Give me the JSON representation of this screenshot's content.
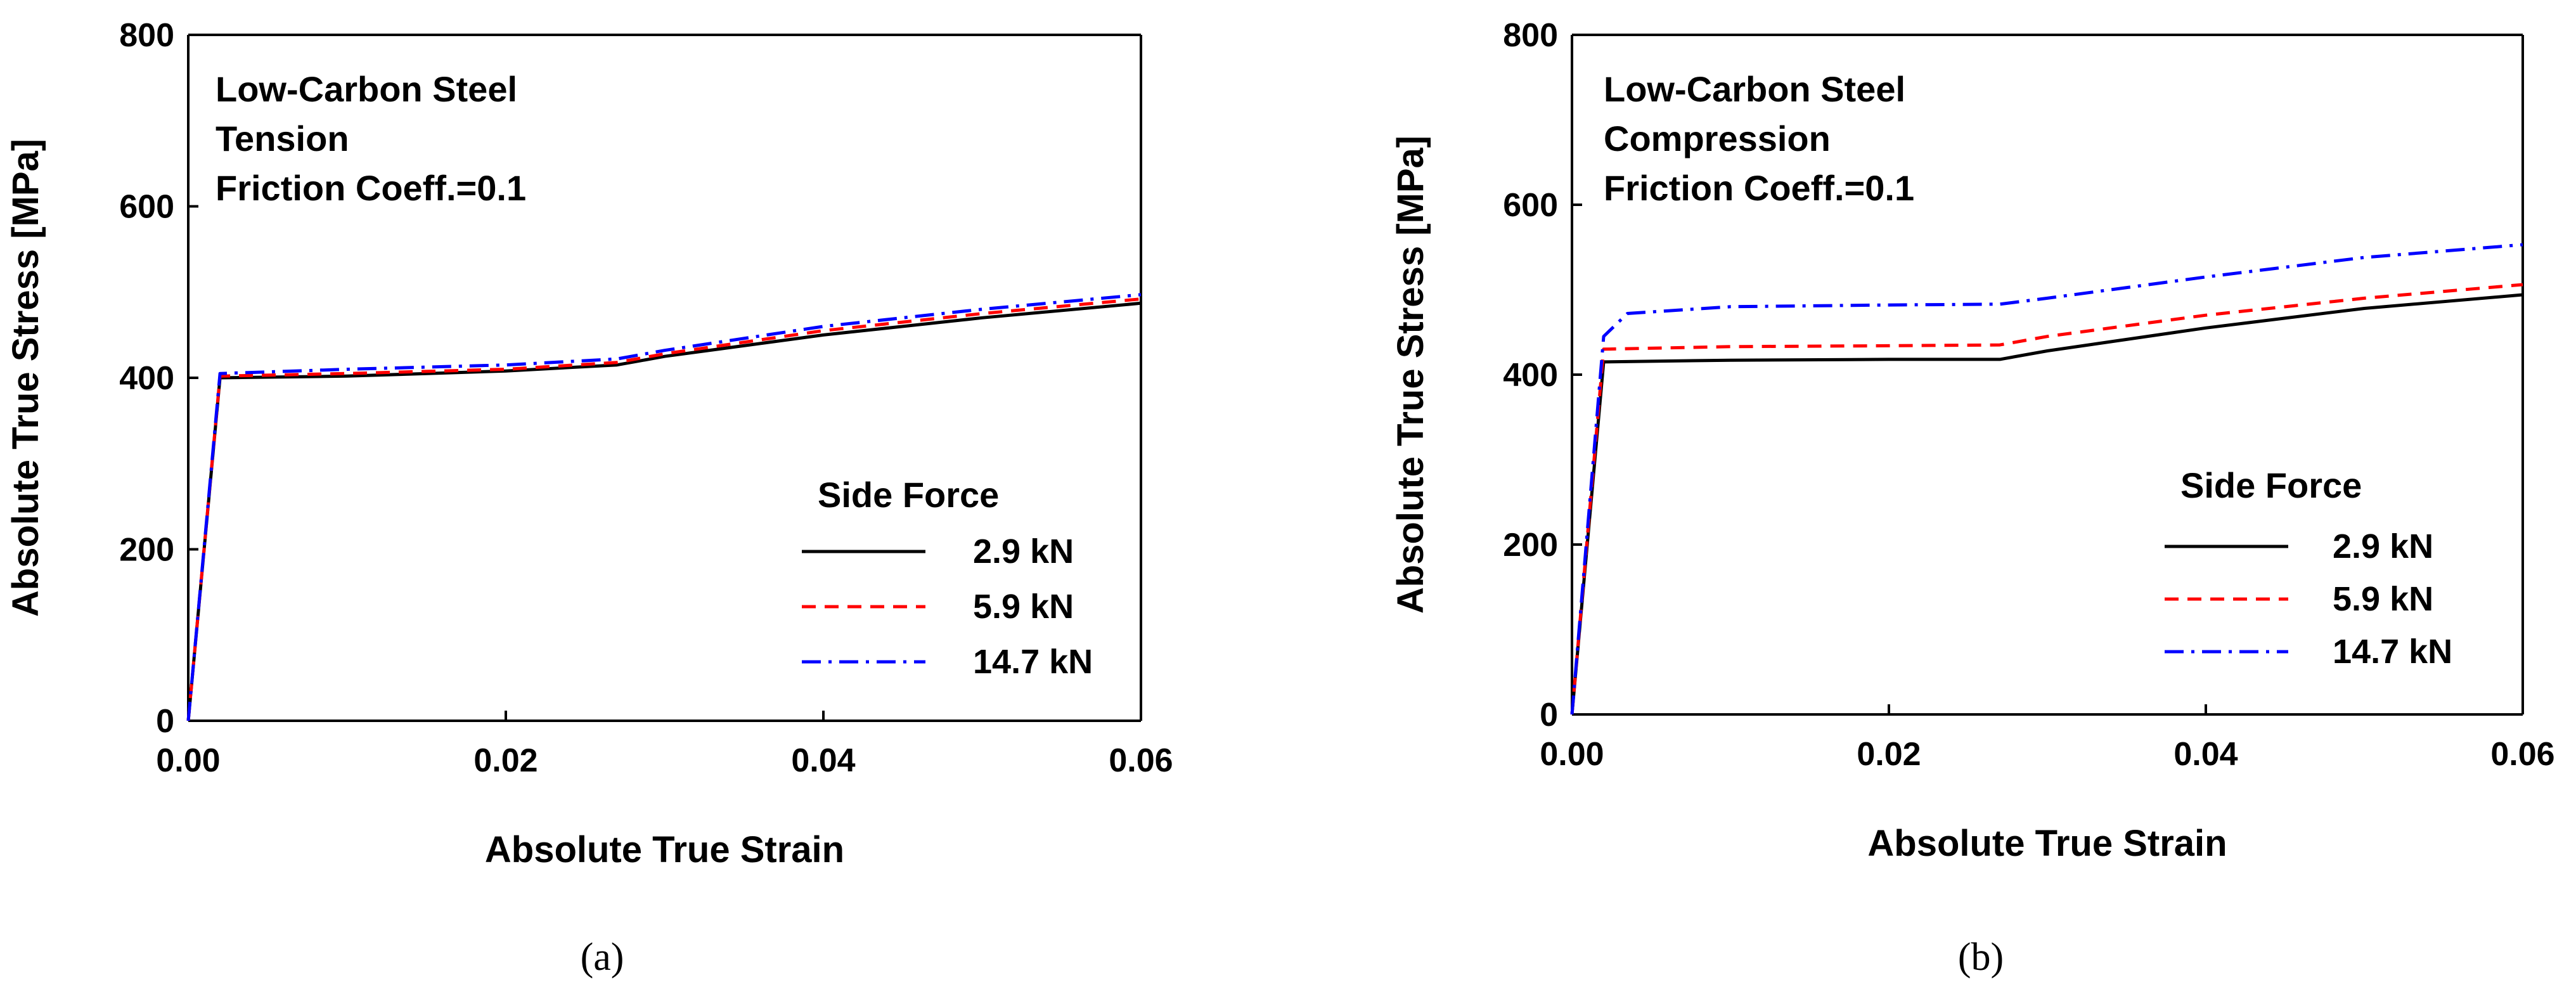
{
  "chart_data": [
    {
      "type": "line",
      "panel_label": "(a)",
      "annotations": [
        "Low-Carbon Steel",
        "Tension",
        "Friction Coeff.=0.1"
      ],
      "xlabel": "Absolute True Strain",
      "ylabel": "Absolute True Stress [MPa]",
      "xlim": [
        0,
        0.06
      ],
      "ylim": [
        0,
        800
      ],
      "xticks": [
        "0.00",
        "0.02",
        "0.04",
        "0.06"
      ],
      "yticks": [
        "0",
        "200",
        "400",
        "600",
        "800"
      ],
      "legend_title": "Side Force",
      "series": [
        {
          "name": "2.9 kN",
          "color": "#000000",
          "style": "solid",
          "x": [
            0,
            0.002,
            0.01,
            0.02,
            0.027,
            0.03,
            0.04,
            0.05,
            0.06
          ],
          "y": [
            0,
            400,
            402,
            408,
            415,
            425,
            450,
            470,
            487
          ]
        },
        {
          "name": "5.9 kN",
          "color": "#ff0000",
          "style": "dash",
          "x": [
            0,
            0.002,
            0.01,
            0.02,
            0.027,
            0.03,
            0.04,
            0.05,
            0.06
          ],
          "y": [
            0,
            402,
            405,
            410,
            418,
            428,
            455,
            475,
            492
          ]
        },
        {
          "name": "14.7 kN",
          "color": "#0000ff",
          "style": "dashdot",
          "x": [
            0,
            0.002,
            0.01,
            0.02,
            0.027,
            0.03,
            0.04,
            0.05,
            0.06
          ],
          "y": [
            0,
            405,
            410,
            415,
            422,
            432,
            460,
            480,
            497
          ]
        }
      ]
    },
    {
      "type": "line",
      "panel_label": "(b)",
      "annotations": [
        "Low-Carbon Steel",
        "Compression",
        "Friction Coeff.=0.1"
      ],
      "xlabel": "Absolute True Strain",
      "ylabel": "Absolute True Stress [MPa]",
      "xlim": [
        0,
        0.06
      ],
      "ylim": [
        0,
        800
      ],
      "xticks": [
        "0.00",
        "0.02",
        "0.04",
        "0.06"
      ],
      "yticks": [
        "0",
        "200",
        "400",
        "600",
        "800"
      ],
      "legend_title": "Side Force",
      "series": [
        {
          "name": "2.9 kN",
          "color": "#000000",
          "style": "solid",
          "x": [
            0,
            0.002,
            0.01,
            0.02,
            0.027,
            0.03,
            0.04,
            0.05,
            0.06
          ],
          "y": [
            0,
            415,
            417,
            418,
            418,
            428,
            455,
            478,
            494
          ]
        },
        {
          "name": "5.9 kN",
          "color": "#ff0000",
          "style": "dash",
          "x": [
            0,
            0.002,
            0.01,
            0.02,
            0.027,
            0.03,
            0.04,
            0.05,
            0.06
          ],
          "y": [
            0,
            430,
            433,
            434,
            435,
            445,
            470,
            490,
            506
          ]
        },
        {
          "name": "14.7 kN",
          "color": "#0000ff",
          "style": "dashdot",
          "x": [
            0,
            0.002,
            0.0035,
            0.01,
            0.02,
            0.027,
            0.03,
            0.04,
            0.05,
            0.06
          ],
          "y": [
            0,
            445,
            472,
            480,
            482,
            483,
            490,
            515,
            538,
            553
          ]
        }
      ]
    }
  ]
}
